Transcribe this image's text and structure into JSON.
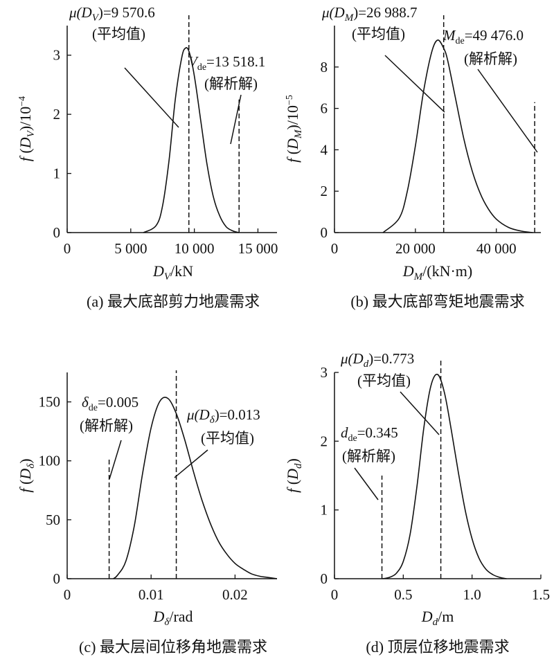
{
  "chart_data": [
    {
      "type": "line",
      "caption": "(a) 最大底部剪力地震需求",
      "ylabel": "f (DV)/10⁻⁴",
      "xlabel": "DV/kN",
      "xlim": [
        0,
        16500
      ],
      "ylim": [
        0,
        3.5
      ],
      "xticks": [
        0,
        5000,
        10000,
        15000
      ],
      "xtick_labels": [
        "0",
        "5 000",
        "10 000",
        "15 000"
      ],
      "yticks": [
        0,
        1,
        2,
        3
      ],
      "ytick_labels": [
        "0",
        "1",
        "2",
        "3"
      ],
      "curve": {
        "x": [
          6000,
          7000,
          7500,
          8000,
          8500,
          9000,
          9300,
          9600,
          10000,
          10500,
          11000,
          11500,
          12000,
          12500,
          13000,
          13500
        ],
        "y": [
          0.0,
          0.12,
          0.45,
          1.2,
          2.25,
          2.95,
          3.12,
          3.05,
          2.65,
          1.9,
          1.15,
          0.6,
          0.28,
          0.1,
          0.03,
          0.0
        ]
      },
      "mean": {
        "x": 9570.6,
        "label": "μ(DV)=9 570.6",
        "sublabel": "(平均值)"
      },
      "design": {
        "x": 13518.1,
        "height": 2.25,
        "label": "Vde=13 518.1",
        "sublabel": "(解析解)"
      }
    },
    {
      "type": "line",
      "caption": "(b) 最大底部弯矩地震需求",
      "ylabel": "f (DM)/10⁻⁵",
      "xlabel": "DM/(kN·m)",
      "xlim": [
        0,
        51000
      ],
      "ylim": [
        0,
        10
      ],
      "xticks": [
        0,
        20000,
        40000
      ],
      "xtick_labels": [
        "0",
        "20 000",
        "40 000"
      ],
      "yticks": [
        0,
        2,
        4,
        6,
        8
      ],
      "ytick_labels": [
        "0",
        "2",
        "4",
        "6",
        "8"
      ],
      "curve": {
        "x": [
          12000,
          16000,
          18000,
          20000,
          22000,
          24000,
          25500,
          27000,
          28000,
          30000,
          32000,
          34000,
          36000,
          38000,
          40000,
          43000,
          46000,
          49000
        ],
        "y": [
          0.0,
          0.7,
          2.0,
          4.2,
          6.8,
          8.7,
          9.3,
          8.9,
          8.3,
          6.4,
          4.5,
          3.0,
          1.9,
          1.15,
          0.65,
          0.25,
          0.08,
          0.0
        ]
      },
      "mean": {
        "x": 26988.7,
        "label": "μ(DM)=26 988.7",
        "sublabel": "(平均值)"
      },
      "design": {
        "x": 49476.0,
        "height": 6.3,
        "label": "Mde=49 476.0",
        "sublabel": "(解析解)"
      }
    },
    {
      "type": "line",
      "caption": "(c) 最大层间位移角地震需求",
      "ylabel": "f (Dδ)",
      "xlabel": "Dδ/rad",
      "xlim": [
        0,
        0.025
      ],
      "ylim": [
        0,
        175
      ],
      "xticks": [
        0,
        0.01,
        0.02
      ],
      "xtick_labels": [
        "0",
        "0.01",
        "0.02"
      ],
      "yticks": [
        0,
        50,
        100,
        150
      ],
      "ytick_labels": [
        "0",
        "50",
        "100",
        "150"
      ],
      "curve": {
        "x": [
          0.0055,
          0.006,
          0.007,
          0.008,
          0.009,
          0.01,
          0.011,
          0.012,
          0.013,
          0.014,
          0.015,
          0.016,
          0.017,
          0.018,
          0.019,
          0.02,
          0.021,
          0.022,
          0.023,
          0.024,
          0.025
        ],
        "y": [
          0,
          3,
          15,
          45,
          90,
          128,
          150,
          153,
          140,
          118,
          92,
          68,
          48,
          32,
          21,
          13,
          8,
          4,
          2,
          1,
          0
        ]
      },
      "mean": {
        "x": 0.013,
        "label": "μ(Dδ)=0.013",
        "sublabel": "(平均值)"
      },
      "design": {
        "x": 0.005,
        "height": 102,
        "label": "δde=0.005",
        "sublabel": "(解析解)"
      }
    },
    {
      "type": "line",
      "caption": "(d) 顶层位移地震需求",
      "ylabel": "f (Dd)",
      "xlabel": "Dd/m",
      "xlim": [
        0,
        1.5
      ],
      "ylim": [
        0,
        3
      ],
      "xticks": [
        0,
        0.5,
        1.0,
        1.5
      ],
      "xtick_labels": [
        "0",
        "0.5",
        "1.0",
        "1.5"
      ],
      "yticks": [
        0,
        1,
        2,
        3
      ],
      "ytick_labels": [
        "0",
        "1",
        "2",
        "3"
      ],
      "curve": {
        "x": [
          0.35,
          0.4,
          0.45,
          0.5,
          0.55,
          0.6,
          0.65,
          0.7,
          0.75,
          0.8,
          0.85,
          0.9,
          0.95,
          1.0,
          1.05,
          1.1,
          1.15,
          1.2,
          1.25
        ],
        "y": [
          0.0,
          0.02,
          0.08,
          0.25,
          0.65,
          1.35,
          2.2,
          2.8,
          2.97,
          2.7,
          2.15,
          1.55,
          1.0,
          0.58,
          0.3,
          0.14,
          0.06,
          0.02,
          0.0
        ]
      },
      "mean": {
        "x": 0.773,
        "label": "μ(Dd)=0.773",
        "sublabel": "(平均值)"
      },
      "design": {
        "x": 0.345,
        "height": 1.5,
        "label": "dde=0.345",
        "sublabel": "(解析解)"
      }
    }
  ]
}
